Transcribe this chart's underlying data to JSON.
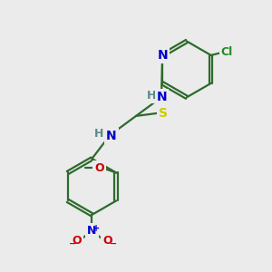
{
  "bg_color": "#ebebeb",
  "bond_color": "#2d6b2d",
  "N_color": "#0000cc",
  "O_color": "#cc0000",
  "S_color": "#cccc00",
  "Cl_color": "#228B22",
  "H_color": "#5a8a8a",
  "line_width": 1.6,
  "font_size": 10,
  "font_size_small": 9,
  "figsize": [
    3.0,
    3.0
  ],
  "dpi": 100,
  "xlim": [
    0,
    10
  ],
  "ylim": [
    0,
    10
  ]
}
